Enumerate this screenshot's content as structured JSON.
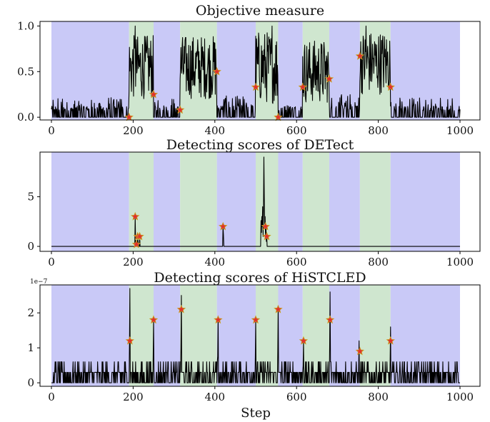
{
  "figure": {
    "xlabel": "Step"
  },
  "colors": {
    "blue_band": "#c9c9f7",
    "green_band": "#cfe6cf",
    "line": "#000000",
    "marker_fill": "#e03030",
    "marker_edge": "#c8a020"
  },
  "chart_data": [
    {
      "type": "line",
      "title": "Objective measure",
      "xlim": [
        0,
        1000
      ],
      "ylim": [
        -0.03,
        1.05
      ],
      "xticks": [
        "0",
        "200",
        "400",
        "600",
        "800",
        "1000"
      ],
      "yticks": [
        {
          "value": 0,
          "label": "0.0"
        },
        {
          "value": 0.5,
          "label": "0.5"
        },
        {
          "value": 1,
          "label": "1.0"
        }
      ],
      "regions": [
        {
          "start": 0,
          "end": 190,
          "color": "blue"
        },
        {
          "start": 190,
          "end": 250,
          "color": "green"
        },
        {
          "start": 250,
          "end": 315,
          "color": "blue"
        },
        {
          "start": 315,
          "end": 405,
          "color": "green"
        },
        {
          "start": 405,
          "end": 500,
          "color": "blue"
        },
        {
          "start": 500,
          "end": 555,
          "color": "green"
        },
        {
          "start": 555,
          "end": 615,
          "color": "blue"
        },
        {
          "start": 615,
          "end": 680,
          "color": "green"
        },
        {
          "start": 680,
          "end": 755,
          "color": "blue"
        },
        {
          "start": 755,
          "end": 830,
          "color": "green"
        },
        {
          "start": 830,
          "end": 1000,
          "color": "blue"
        }
      ],
      "series_levels": [
        {
          "start": 0,
          "end": 190,
          "base": 0.04,
          "amp": 0.12
        },
        {
          "start": 190,
          "end": 250,
          "base": 0.55,
          "amp": 0.35
        },
        {
          "start": 250,
          "end": 315,
          "base": 0.05,
          "amp": 0.12
        },
        {
          "start": 315,
          "end": 405,
          "base": 0.55,
          "amp": 0.35
        },
        {
          "start": 405,
          "end": 500,
          "base": 0.06,
          "amp": 0.13
        },
        {
          "start": 500,
          "end": 555,
          "base": 0.55,
          "amp": 0.4
        },
        {
          "start": 555,
          "end": 615,
          "base": 0.05,
          "amp": 0.12
        },
        {
          "start": 615,
          "end": 680,
          "base": 0.5,
          "amp": 0.35
        },
        {
          "start": 680,
          "end": 755,
          "base": 0.07,
          "amp": 0.14
        },
        {
          "start": 755,
          "end": 830,
          "base": 0.6,
          "amp": 0.35
        },
        {
          "start": 830,
          "end": 1000,
          "base": 0.04,
          "amp": 0.12
        }
      ],
      "peaks": [
        {
          "x": 205,
          "y": 1.0
        },
        {
          "x": 540,
          "y": 1.0
        },
        {
          "x": 770,
          "y": 1.0
        }
      ],
      "markers": [
        {
          "x": 190,
          "y": 0.0
        },
        {
          "x": 250,
          "y": 0.25
        },
        {
          "x": 315,
          "y": 0.08
        },
        {
          "x": 405,
          "y": 0.5
        },
        {
          "x": 500,
          "y": 0.33
        },
        {
          "x": 555,
          "y": 0.0
        },
        {
          "x": 615,
          "y": 0.33
        },
        {
          "x": 680,
          "y": 0.42
        },
        {
          "x": 755,
          "y": 0.67
        },
        {
          "x": 830,
          "y": 0.33
        }
      ]
    },
    {
      "type": "line",
      "title": "Detecting scores of DETect",
      "xlim": [
        0,
        1000
      ],
      "ylim": [
        -0.5,
        9.5
      ],
      "xticks": [
        "0",
        "200",
        "400",
        "600",
        "800",
        "1000"
      ],
      "yticks": [
        {
          "value": 0,
          "label": "0"
        },
        {
          "value": 5,
          "label": "5"
        }
      ],
      "regions": [
        {
          "start": 0,
          "end": 190,
          "color": "blue"
        },
        {
          "start": 190,
          "end": 250,
          "color": "green"
        },
        {
          "start": 250,
          "end": 315,
          "color": "blue"
        },
        {
          "start": 315,
          "end": 405,
          "color": "green"
        },
        {
          "start": 405,
          "end": 500,
          "color": "blue"
        },
        {
          "start": 500,
          "end": 555,
          "color": "green"
        },
        {
          "start": 555,
          "end": 615,
          "color": "blue"
        },
        {
          "start": 615,
          "end": 680,
          "color": "green"
        },
        {
          "start": 680,
          "end": 755,
          "color": "blue"
        },
        {
          "start": 755,
          "end": 830,
          "color": "green"
        },
        {
          "start": 830,
          "end": 1000,
          "color": "blue"
        }
      ],
      "points": [
        [
          0,
          0
        ],
        [
          204,
          0
        ],
        [
          205,
          3
        ],
        [
          206,
          0.5
        ],
        [
          207,
          0
        ],
        [
          210,
          0
        ],
        [
          211,
          1
        ],
        [
          212,
          0.4
        ],
        [
          213,
          0
        ],
        [
          215,
          0
        ],
        [
          216,
          1
        ],
        [
          217,
          0
        ],
        [
          419,
          0
        ],
        [
          420,
          2
        ],
        [
          421,
          1.2
        ],
        [
          422,
          0
        ],
        [
          512,
          0
        ],
        [
          513,
          2.6
        ],
        [
          514,
          1.4
        ],
        [
          515,
          3
        ],
        [
          516,
          2
        ],
        [
          517,
          4
        ],
        [
          518,
          1
        ],
        [
          519,
          3.5
        ],
        [
          520,
          9
        ],
        [
          521,
          5
        ],
        [
          522,
          2
        ],
        [
          523,
          3
        ],
        [
          524,
          1
        ],
        [
          525,
          2
        ],
        [
          526,
          0.5
        ],
        [
          527,
          1
        ],
        [
          528,
          0
        ],
        [
          1000,
          0
        ]
      ],
      "markers": [
        {
          "x": 205,
          "y": 3
        },
        {
          "x": 208,
          "y": 0.2
        },
        {
          "x": 211,
          "y": 1
        },
        {
          "x": 216,
          "y": 1
        },
        {
          "x": 420,
          "y": 2
        },
        {
          "x": 524,
          "y": 2
        },
        {
          "x": 527,
          "y": 1
        }
      ]
    },
    {
      "type": "line",
      "title": "Detecting scores of HiSTCLED",
      "offset_label": "1e−7",
      "xlim": [
        0,
        1000
      ],
      "ylim": [
        -0.1,
        2.8
      ],
      "xticks": [
        "0",
        "200",
        "400",
        "600",
        "800",
        "1000"
      ],
      "yticks": [
        {
          "value": 0,
          "label": "0"
        },
        {
          "value": 1,
          "label": "1"
        },
        {
          "value": 2,
          "label": "2"
        }
      ],
      "regions": [
        {
          "start": 0,
          "end": 190,
          "color": "blue"
        },
        {
          "start": 190,
          "end": 250,
          "color": "green"
        },
        {
          "start": 250,
          "end": 315,
          "color": "blue"
        },
        {
          "start": 315,
          "end": 405,
          "color": "green"
        },
        {
          "start": 405,
          "end": 500,
          "color": "blue"
        },
        {
          "start": 500,
          "end": 555,
          "color": "green"
        },
        {
          "start": 555,
          "end": 615,
          "color": "blue"
        },
        {
          "start": 615,
          "end": 680,
          "color": "green"
        },
        {
          "start": 680,
          "end": 755,
          "color": "blue"
        },
        {
          "start": 755,
          "end": 830,
          "color": "green"
        },
        {
          "start": 830,
          "end": 1000,
          "color": "blue"
        }
      ],
      "noise": {
        "levels": [
          0,
          0.3,
          0.6
        ],
        "start": 5
      },
      "peaks": [
        {
          "x": 192,
          "y": 2.7
        },
        {
          "x": 250,
          "y": 1.8
        },
        {
          "x": 318,
          "y": 2.5
        },
        {
          "x": 408,
          "y": 1.9
        },
        {
          "x": 500,
          "y": 1.8
        },
        {
          "x": 555,
          "y": 2.2
        },
        {
          "x": 617,
          "y": 1.2
        },
        {
          "x": 682,
          "y": 2.6
        },
        {
          "x": 753,
          "y": 1.2
        },
        {
          "x": 830,
          "y": 1.6
        }
      ],
      "markers": [
        {
          "x": 192,
          "y": 1.2
        },
        {
          "x": 250,
          "y": 1.8
        },
        {
          "x": 318,
          "y": 2.1
        },
        {
          "x": 408,
          "y": 1.8
        },
        {
          "x": 500,
          "y": 1.8
        },
        {
          "x": 555,
          "y": 2.1
        },
        {
          "x": 617,
          "y": 1.2
        },
        {
          "x": 682,
          "y": 1.8
        },
        {
          "x": 755,
          "y": 0.9
        },
        {
          "x": 830,
          "y": 1.2
        }
      ]
    }
  ]
}
